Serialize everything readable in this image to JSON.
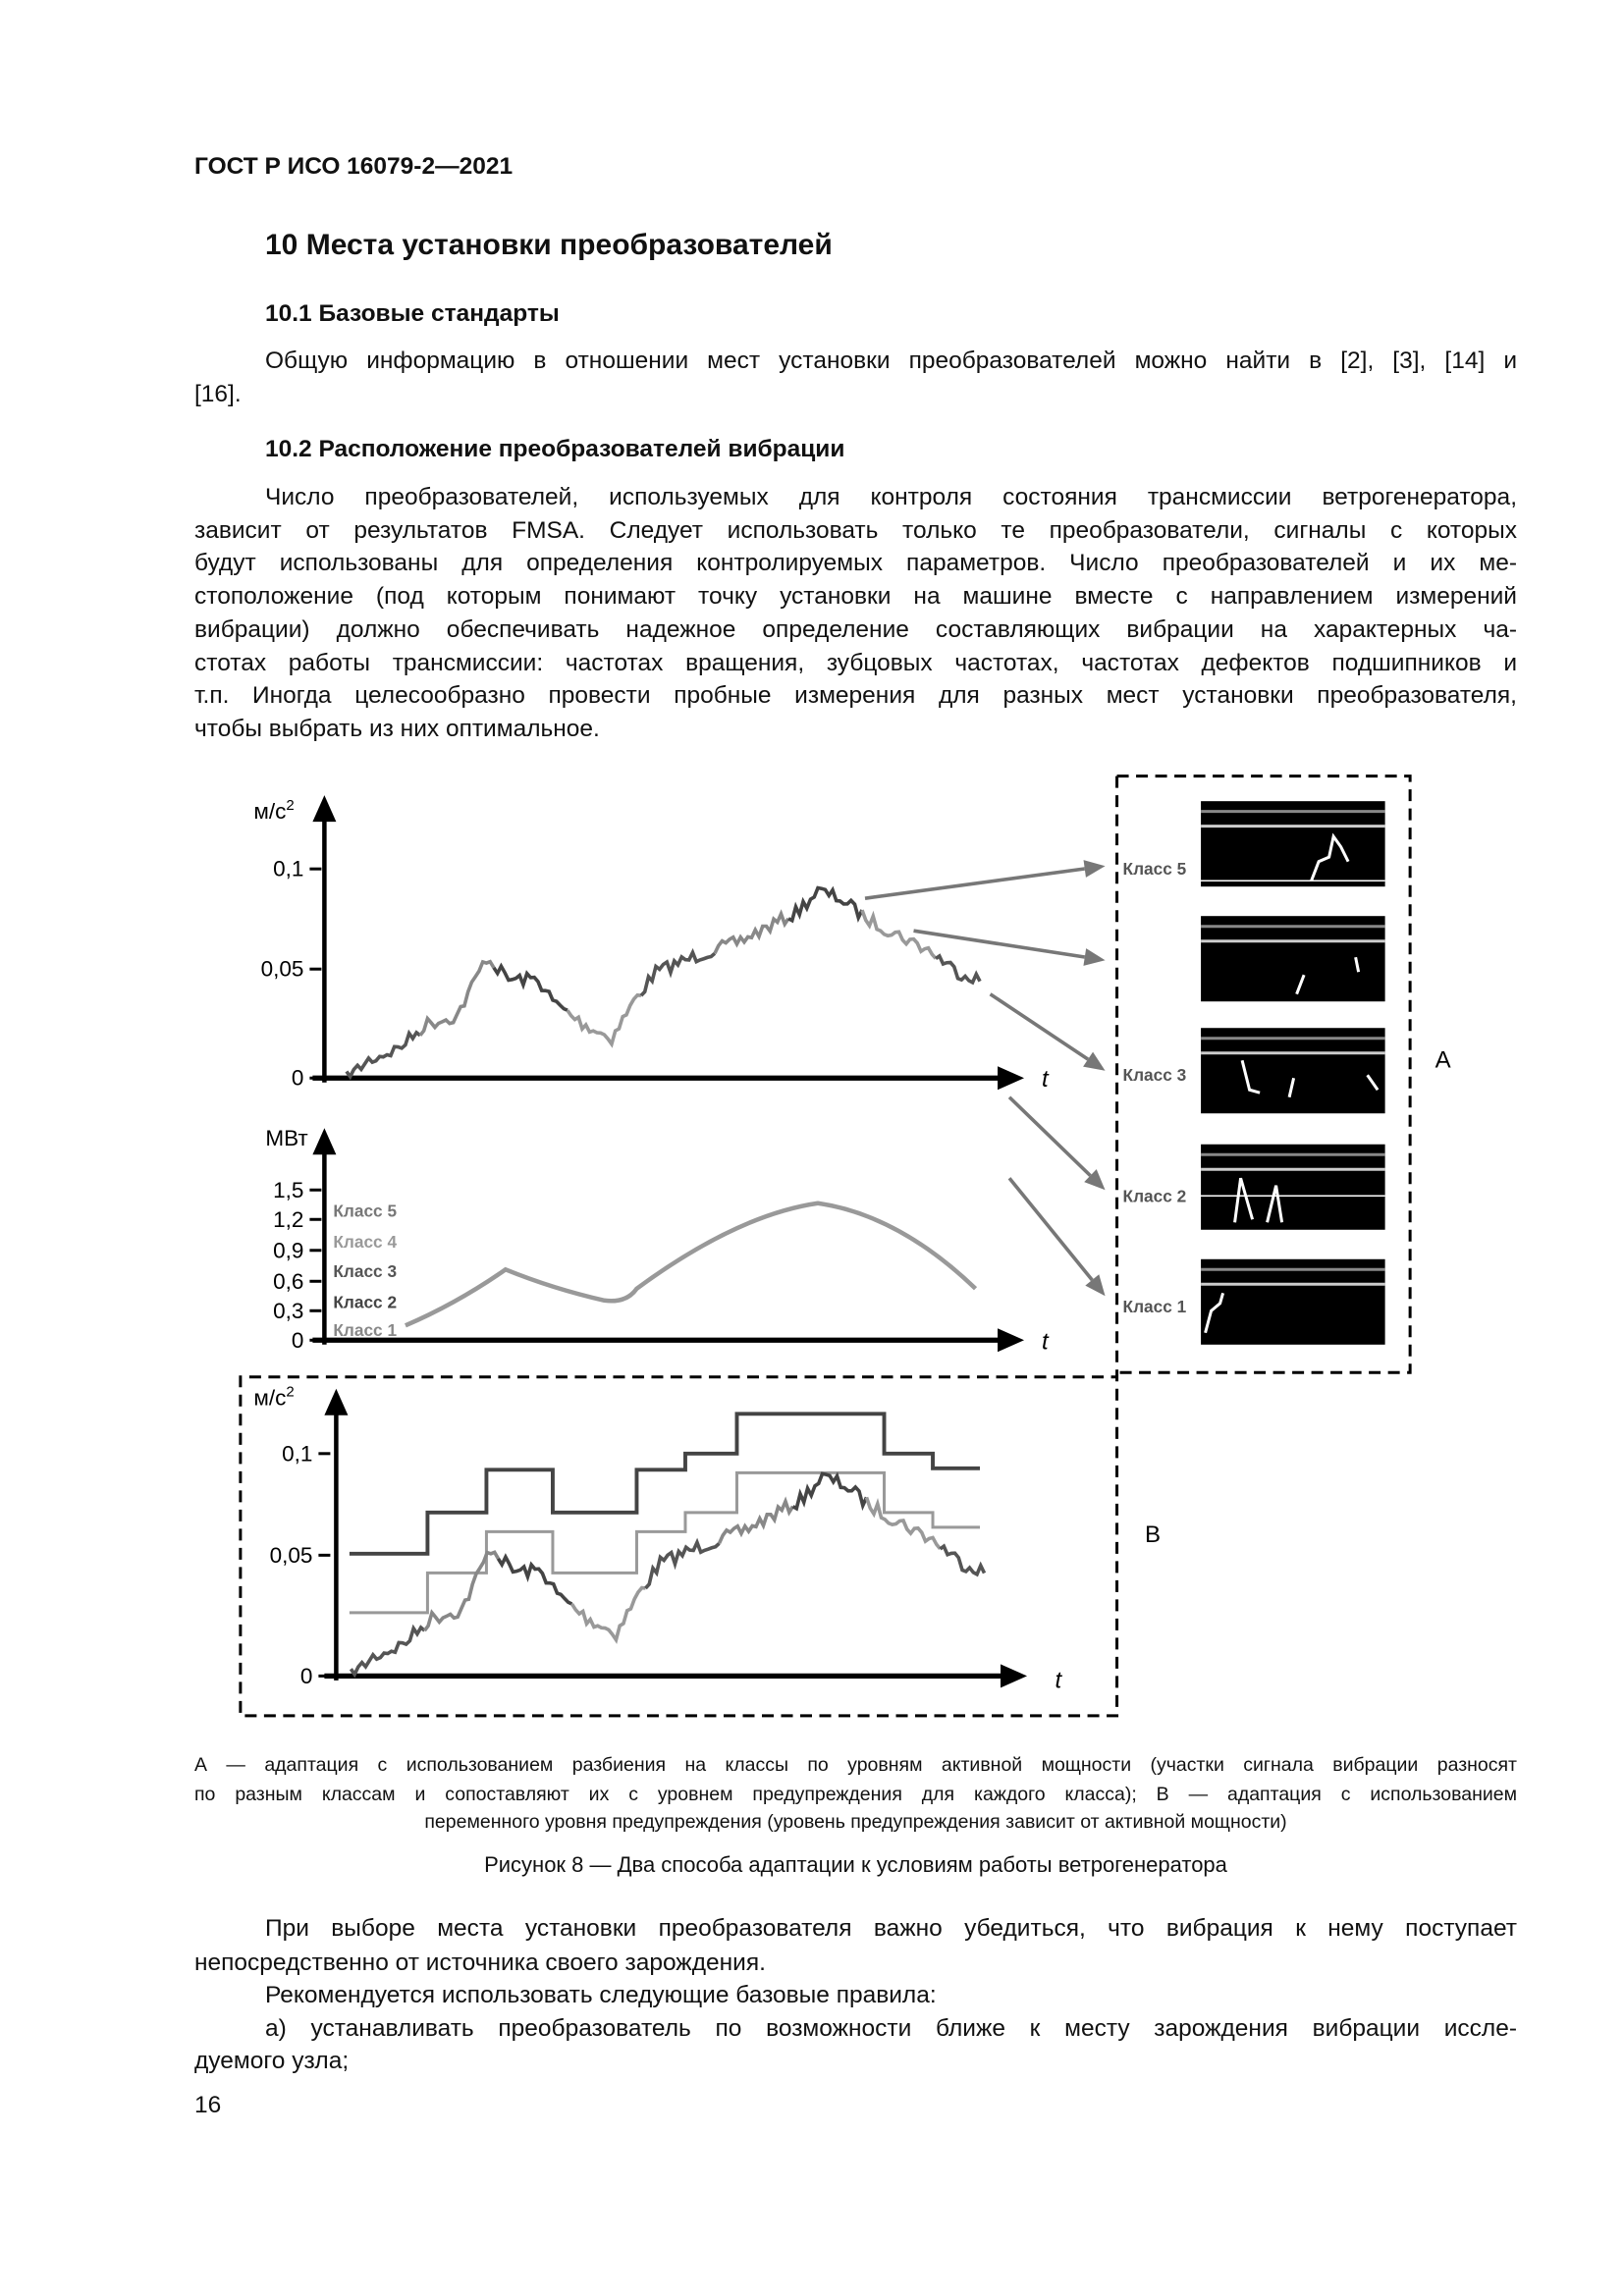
{
  "header": {
    "title": "ГОСТ Р ИСО 16079-2—2021"
  },
  "section": {
    "title": "10 Места установки преобразователей"
  },
  "subsections": [
    {
      "title": "10.1 Базовые стандарты",
      "lines": [
        "Общую информацию в отношении мест установки преобразователей можно найти в [2], [3], [14] и",
        "[16]."
      ]
    },
    {
      "title": "10.2 Расположение преобразователей вибрации",
      "lines": [
        "Число преобразователей, используемых для контроля состояния трансмиссии ветрогенератора,",
        "зависит от результатов FMSA. Следует использовать только те преобразователи, сигналы с которых",
        "будут использованы для определения контролируемых параметров. Число преобразователей и их ме-",
        "стоположение (под которым понимают точку установки на машине вместе с направлением измерений",
        "вибрации) должно обеспечивать надежное определение составляющих вибрации на характерных ча-",
        "стотах работы трансмиссии: частотах вращения, зубцовых частотах, частотах дефектов подшипников и",
        "т.п. Иногда целесообразно провести пробные измерения для разных мест установки преобразователя,",
        "чтобы выбрать из них оптимальное."
      ]
    }
  ],
  "figure": {
    "top_chart": {
      "y_unit": "м/с",
      "y_unit_sup": "2",
      "ticks": [
        "0,1",
        "0,05",
        "0"
      ],
      "x_label": "t"
    },
    "power_chart": {
      "y_unit": "МВт",
      "ticks": [
        "1,5",
        "1,2",
        "0,9",
        "0,6",
        "0,3",
        "0"
      ],
      "classes": [
        "Класс 5",
        "Класс 4",
        "Класс 3",
        "Класс 2",
        "Класс 1"
      ],
      "x_label": "t"
    },
    "panel_a": {
      "classes": [
        "Класс 5",
        "Класс 3",
        "Класс 2",
        "Класс 1"
      ],
      "label": "А"
    },
    "bottom_chart": {
      "y_unit": "м/с",
      "y_unit_sup": "2",
      "ticks": [
        "0,1",
        "0,05",
        "0"
      ],
      "x_label": "t"
    },
    "panel_b": {
      "label": "В"
    },
    "note_lines": [
      "А — адаптация с использованием разбиения на классы по уровням активной мощности (участки сигнала вибрации разносят",
      "по разным классам и сопоставляют их с уровнем предупреждения для каждого класса); В — адаптация с использованием",
      "переменного уровня предупреждения (уровень предупреждения зависит от активной мощности)"
    ],
    "caption": "Рисунок 8 — Два способа адаптации к условиям работы ветрогенератора"
  },
  "after": [
    {
      "lines": [
        "При выборе места установки преобразователя важно убедиться, что вибрация к нему поступает",
        "непосредственно от источника своего зарождения."
      ]
    },
    {
      "lines": [
        "Рекомендуется использовать следующие базовые правила:"
      ]
    },
    {
      "lines": [
        "а) устанавливать преобразователь по возможности ближе к месту зарождения вибрации иссле-",
        "дуемого узла;"
      ]
    }
  ],
  "page_number": "16"
}
